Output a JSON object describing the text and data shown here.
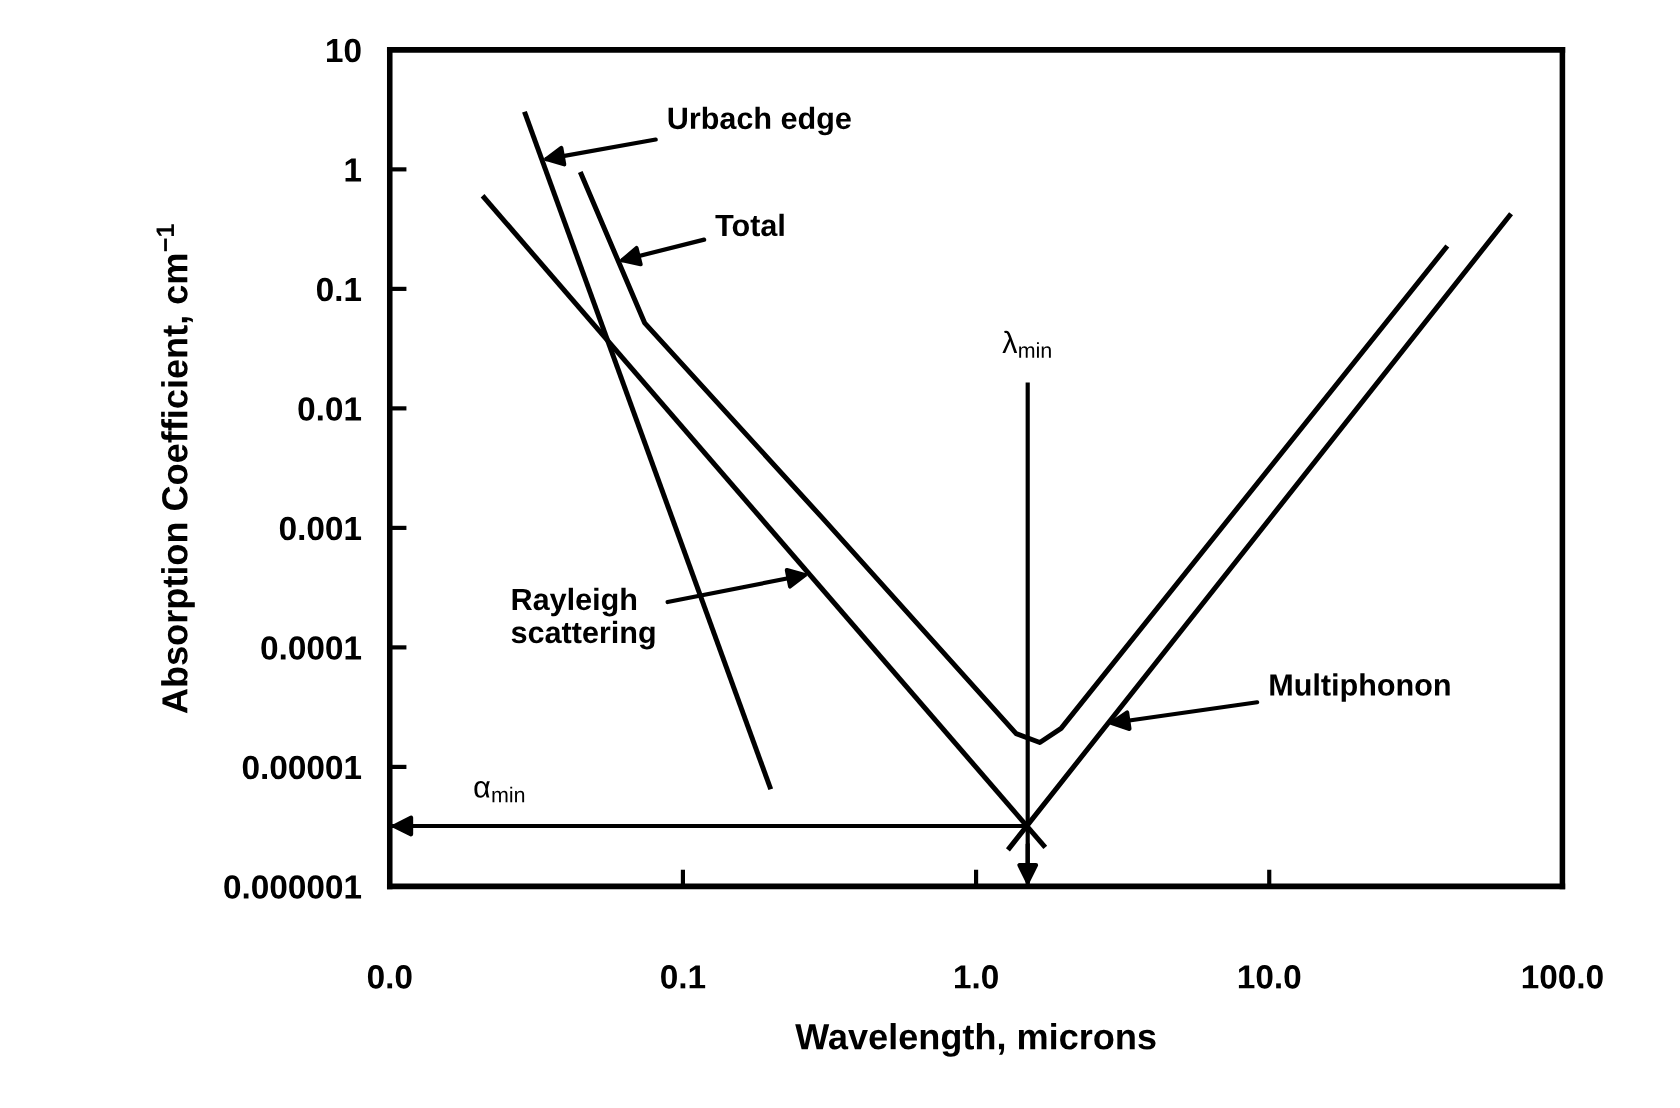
{
  "chart_data": {
    "type": "line",
    "xlabel": "Wavelength, microns",
    "ylabel": "Absorption Coefficient, cm$^{−1}$",
    "log": "xy",
    "series": [
      {
        "color": "#000000",
        "x": [
          0.029,
          0.198
        ],
        "values": [
          2.9,
          6.8e-06
        ]
      },
      {
        "color": "#000000",
        "x": [
          0.021,
          1.7
        ],
        "values": [
          0.58,
          2.2e-06
        ]
      },
      {
        "color": "#000000",
        "x": [
          1.3,
          66
        ],
        "values": [
          2.1e-06,
          0.41
        ]
      },
      {
        "color": "#000000",
        "x": [
          0.045,
          0.074,
          0.3,
          1.37,
          1.65,
          1.95,
          40
        ],
        "values": [
          0.91,
          0.052,
          0.0012,
          1.9e-05,
          1.6e-05,
          2.1e-05,
          0.22
        ]
      }
    ],
    "annotations": [
      {
        "text": "Urbach edge",
        "x": 0.033,
        "y": 1.2
      },
      {
        "text": "Total",
        "x": 0.06,
        "y": 0.17
      },
      {
        "text": "Rayleigh\nscattering",
        "x": 0.27,
        "y": 0.00041
      },
      {
        "text": "Multiphonon",
        "x": 2.8,
        "y": 2.3e-05
      }
    ],
    "ref_lines": [
      {
        "axis": "x",
        "value": 1.5,
        "label": "λ$_{min}$"
      },
      {
        "axis": "y",
        "value": 3.2e-06,
        "label": "α$_{min}$"
      }
    ],
    "xlim": [
      0.01,
      100
    ],
    "ylim": [
      1e-06,
      10
    ],
    "xticks": [
      {
        "value": 0.01,
        "label": "0.0"
      },
      {
        "value": 0.1,
        "label": "0.1"
      },
      {
        "value": 1,
        "label": "1.0"
      },
      {
        "value": 10,
        "label": "10.0"
      },
      {
        "value": 100,
        "label": "100.0"
      }
    ],
    "yticks": [
      {
        "value": 1e-06,
        "label": "0.000001"
      },
      {
        "value": 1e-05,
        "label": "0.00001"
      },
      {
        "value": 0.0001,
        "label": "0.0001"
      },
      {
        "value": 0.001,
        "label": "0.001"
      },
      {
        "value": 0.01,
        "label": "0.01"
      },
      {
        "value": 0.1,
        "label": "0.1"
      },
      {
        "value": 1,
        "label": "1"
      },
      {
        "value": 10,
        "label": "10"
      }
    ],
    "grid": false,
    "legend": false,
    "marker": "none",
    "line_style": "solid"
  }
}
